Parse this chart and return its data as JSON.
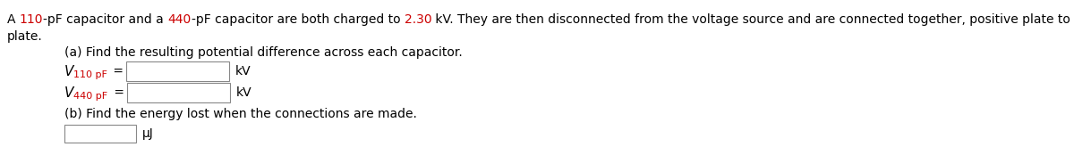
{
  "bg_color": "#ffffff",
  "line1_segments": [
    {
      "text": "A ",
      "color": "#000000"
    },
    {
      "text": "110",
      "color": "#cc0000"
    },
    {
      "text": "-pF capacitor and a ",
      "color": "#000000"
    },
    {
      "text": "440",
      "color": "#cc0000"
    },
    {
      "text": "-pF capacitor are both charged to ",
      "color": "#000000"
    },
    {
      "text": "2.30",
      "color": "#cc0000"
    },
    {
      "text": " kV. They are then disconnected from the voltage source and are connected together, positive plate to negative plate and negative plate to positive",
      "color": "#000000"
    }
  ],
  "line2": "plate.",
  "part_a_label": "(a) Find the resulting potential difference across each capacitor.",
  "v110_sub": "110 pF",
  "v440_sub": "440 pF",
  "kv_label": "kV",
  "part_b_label": "(b) Find the energy lost when the connections are made.",
  "muj_label": "μJ",
  "font_size_main": 10.0,
  "font_size_sub": 8.0,
  "red_color": "#cc0000",
  "black_color": "#000000",
  "gray_color": "#888888"
}
